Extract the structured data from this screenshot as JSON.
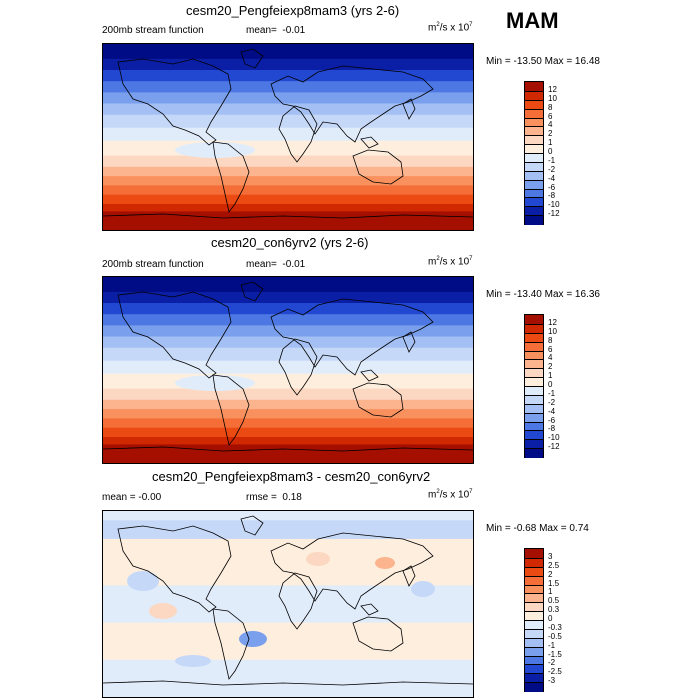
{
  "header": {
    "season": "MAM"
  },
  "chart_data": [
    {
      "type": "heatmap",
      "title": "cesm20_Pengfeiexp8mam3 (yrs 2-6)",
      "left_label": "200mb stream function",
      "mean_label": "mean=",
      "mean_value": "-0.01",
      "units": "m",
      "units_rest": "/s x 10",
      "exp": "7",
      "minmax": "Min = -13.50 Max =  16.48",
      "min": -13.5,
      "max": 16.48,
      "levels": [
        "12",
        "10",
        "8",
        "6",
        "4",
        "2",
        "1",
        "0",
        "-1",
        "-2",
        "-4",
        "-6",
        "-8",
        "-10",
        "-12"
      ],
      "colors": [
        "#a50f00",
        "#d02800",
        "#ec4a13",
        "#f56d37",
        "#f9915f",
        "#fbb48e",
        "#fcd8c2",
        "#fdeede",
        "#e1ecfb",
        "#c5d8f8",
        "#a3bff3",
        "#7a9fec",
        "#4d78e3",
        "#2247d1",
        "#0a1fa6",
        "#000c85"
      ]
    },
    {
      "type": "heatmap",
      "title": "cesm20_con6yrv2 (yrs 2-6)",
      "left_label": "200mb stream function",
      "mean_label": "mean=",
      "mean_value": "-0.01",
      "units": "m",
      "units_rest": "/s x 10",
      "exp": "7",
      "minmax": "Min = -13.40 Max =  16.36",
      "min": -13.4,
      "max": 16.36,
      "levels": [
        "12",
        "10",
        "8",
        "6",
        "4",
        "2",
        "1",
        "0",
        "-1",
        "-2",
        "-4",
        "-6",
        "-8",
        "-10",
        "-12"
      ],
      "colors": [
        "#a50f00",
        "#d02800",
        "#ec4a13",
        "#f56d37",
        "#f9915f",
        "#fbb48e",
        "#fcd8c2",
        "#fdeede",
        "#e1ecfb",
        "#c5d8f8",
        "#a3bff3",
        "#7a9fec",
        "#4d78e3",
        "#2247d1",
        "#0a1fa6",
        "#000c85"
      ]
    },
    {
      "type": "heatmap",
      "title": "cesm20_Pengfeiexp8mam3 - cesm20_con6yrv2",
      "left_label": "mean =  -0.00",
      "mean_label": "rmse =",
      "mean_value": "0.18",
      "units": "m",
      "units_rest": "/s x 10",
      "exp": "7",
      "minmax": "Min = -0.68 Max =   0.74",
      "min": -0.68,
      "max": 0.74,
      "levels": [
        "3",
        "2.5",
        "2",
        "1.5",
        "1",
        "0.5",
        "0.3",
        "0",
        "-0.3",
        "-0.5",
        "-1",
        "-1.5",
        "-2",
        "-2.5",
        "-3"
      ],
      "colors": [
        "#a50f00",
        "#d02800",
        "#ec4a13",
        "#f56d37",
        "#f9915f",
        "#fbb48e",
        "#fcd8c2",
        "#fdeede",
        "#e1ecfb",
        "#c5d8f8",
        "#a3bff3",
        "#7a9fec",
        "#4d78e3",
        "#2247d1",
        "#0a1fa6",
        "#000c85"
      ]
    }
  ]
}
